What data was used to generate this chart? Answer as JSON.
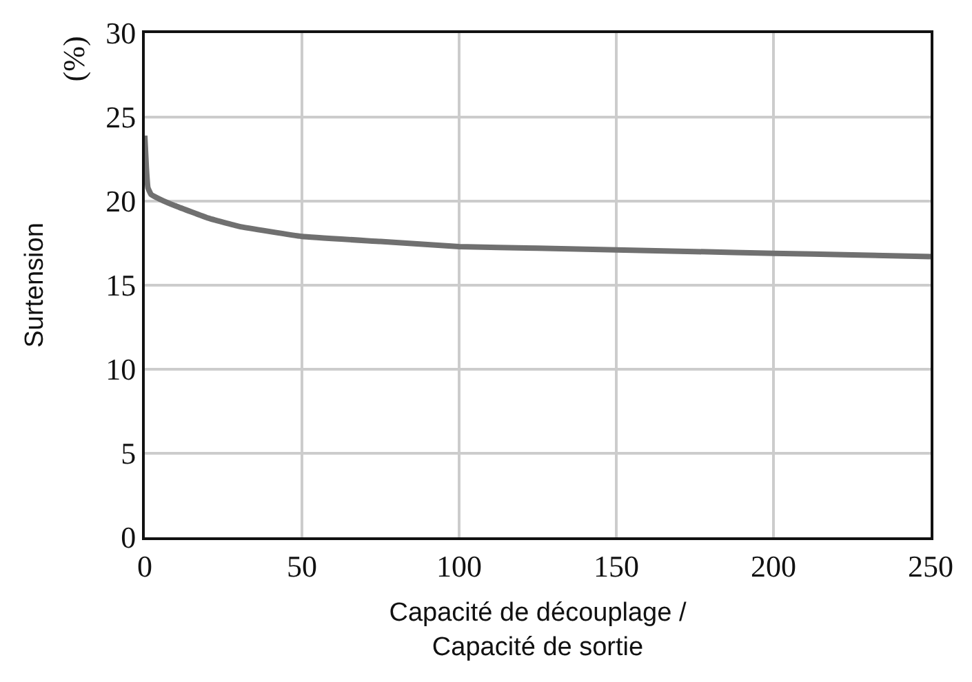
{
  "chart_data": {
    "type": "line",
    "xlabel": "Capacité de découplage /\nCapacité de sortie",
    "ylabel": "Surtension",
    "y2label": "(%)",
    "x": [
      0,
      0.5,
      1,
      2,
      5,
      10,
      20,
      30,
      50,
      75,
      100,
      125,
      150,
      175,
      200,
      225,
      250
    ],
    "series": [
      {
        "color": "#707070",
        "values": [
          23.9,
          22.0,
          20.8,
          20.4,
          20.1,
          19.7,
          19.0,
          18.5,
          17.9,
          17.6,
          17.3,
          17.2,
          17.1,
          17.0,
          16.9,
          16.8,
          16.7
        ]
      }
    ],
    "xlim": [
      0,
      250
    ],
    "xticks": [
      0,
      50,
      100,
      150,
      200,
      250
    ],
    "ylim": [
      0,
      30
    ],
    "yticks": [
      0,
      5,
      10,
      15,
      20,
      25,
      30
    ],
    "grid": true,
    "legend": false,
    "marker": "none",
    "line_style": "solid"
  }
}
